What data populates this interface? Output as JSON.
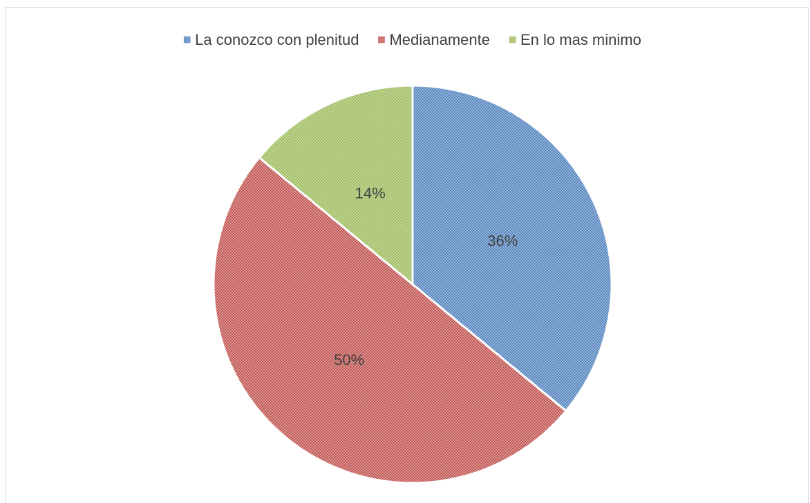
{
  "chart_data": {
    "type": "pie",
    "categories": [
      "La conozco con plenitud",
      "Medianamente",
      "En lo mas minimo"
    ],
    "values": [
      36,
      50,
      14
    ],
    "value_labels": [
      "36%",
      "50%",
      "14%"
    ],
    "colors": [
      "#4f81bd",
      "#c0504d",
      "#9bbb59"
    ],
    "legend": "top"
  }
}
